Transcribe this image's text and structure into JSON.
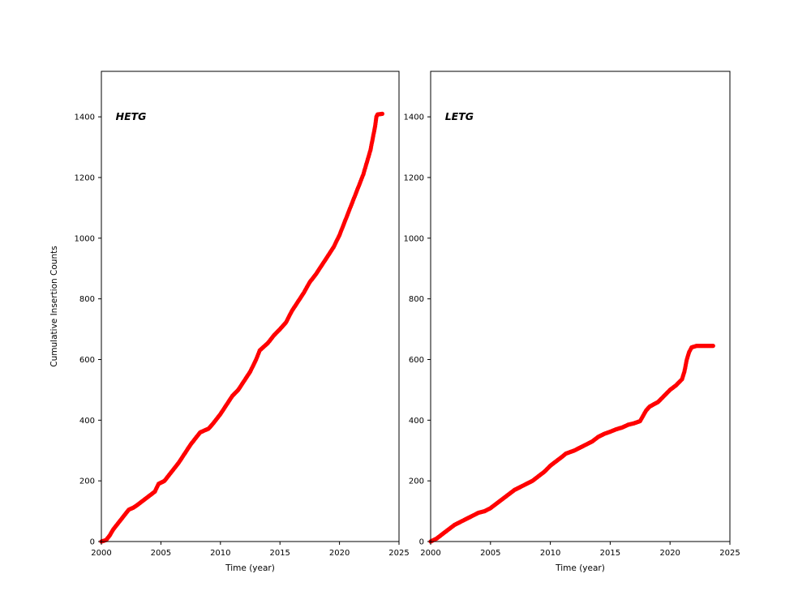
{
  "figure": {
    "background": "#ffffff",
    "marker_color": "#ff0000"
  },
  "chart_data": [
    {
      "type": "scatter",
      "title": "HETG",
      "xlabel": "Time (year)",
      "ylabel": "Cumulative Insertion Counts",
      "xlim": [
        2000,
        2025
      ],
      "ylim": [
        0,
        1550
      ],
      "xticks": [
        2000,
        2005,
        2010,
        2015,
        2020,
        2025
      ],
      "yticks": [
        0,
        200,
        400,
        600,
        800,
        1000,
        1200,
        1400
      ],
      "grid": false,
      "legend": "none",
      "annotation": {
        "text": "HETG",
        "x": 2001.2,
        "y": 1390
      },
      "points": [
        [
          2000.0,
          0
        ],
        [
          2000.4,
          5
        ],
        [
          2000.7,
          20
        ],
        [
          2001.0,
          40
        ],
        [
          2001.5,
          65
        ],
        [
          2002.0,
          90
        ],
        [
          2002.3,
          105
        ],
        [
          2002.7,
          112
        ],
        [
          2003.0,
          120
        ],
        [
          2003.5,
          135
        ],
        [
          2004.0,
          150
        ],
        [
          2004.5,
          165
        ],
        [
          2004.8,
          190
        ],
        [
          2005.3,
          200
        ],
        [
          2006.0,
          235
        ],
        [
          2006.5,
          260
        ],
        [
          2007.0,
          290
        ],
        [
          2007.5,
          320
        ],
        [
          2008.0,
          345
        ],
        [
          2008.3,
          360
        ],
        [
          2009.0,
          372
        ],
        [
          2009.3,
          385
        ],
        [
          2010.0,
          420
        ],
        [
          2010.5,
          450
        ],
        [
          2011.0,
          480
        ],
        [
          2011.5,
          500
        ],
        [
          2012.0,
          530
        ],
        [
          2012.5,
          560
        ],
        [
          2013.0,
          600
        ],
        [
          2013.3,
          630
        ],
        [
          2014.0,
          655
        ],
        [
          2014.5,
          680
        ],
        [
          2015.0,
          700
        ],
        [
          2015.5,
          722
        ],
        [
          2016.0,
          760
        ],
        [
          2016.5,
          790
        ],
        [
          2017.0,
          820
        ],
        [
          2017.5,
          855
        ],
        [
          2018.0,
          880
        ],
        [
          2018.5,
          910
        ],
        [
          2019.0,
          940
        ],
        [
          2019.5,
          970
        ],
        [
          2020.0,
          1010
        ],
        [
          2020.5,
          1060
        ],
        [
          2021.0,
          1110
        ],
        [
          2021.5,
          1160
        ],
        [
          2022.0,
          1210
        ],
        [
          2022.3,
          1250
        ],
        [
          2022.6,
          1290
        ],
        [
          2022.8,
          1330
        ],
        [
          2023.0,
          1370
        ],
        [
          2023.1,
          1400
        ],
        [
          2023.2,
          1408
        ],
        [
          2023.6,
          1410
        ]
      ]
    },
    {
      "type": "scatter",
      "title": "LETG",
      "xlabel": "Time (year)",
      "ylabel": "",
      "xlim": [
        2000,
        2025
      ],
      "ylim": [
        0,
        1550
      ],
      "xticks": [
        2000,
        2005,
        2010,
        2015,
        2020,
        2025
      ],
      "yticks": [
        0,
        200,
        400,
        600,
        800,
        1000,
        1200,
        1400
      ],
      "grid": false,
      "legend": "none",
      "annotation": {
        "text": "LETG",
        "x": 2001.2,
        "y": 1390
      },
      "points": [
        [
          2000.0,
          0
        ],
        [
          2000.5,
          10
        ],
        [
          2001.0,
          25
        ],
        [
          2001.5,
          40
        ],
        [
          2002.0,
          55
        ],
        [
          2002.5,
          65
        ],
        [
          2003.0,
          75
        ],
        [
          2003.5,
          85
        ],
        [
          2004.0,
          95
        ],
        [
          2004.5,
          100
        ],
        [
          2005.0,
          110
        ],
        [
          2005.5,
          125
        ],
        [
          2006.0,
          140
        ],
        [
          2006.5,
          155
        ],
        [
          2007.0,
          170
        ],
        [
          2007.5,
          180
        ],
        [
          2008.0,
          190
        ],
        [
          2008.5,
          200
        ],
        [
          2009.0,
          215
        ],
        [
          2009.5,
          230
        ],
        [
          2010.0,
          250
        ],
        [
          2010.5,
          265
        ],
        [
          2011.0,
          280
        ],
        [
          2011.3,
          290
        ],
        [
          2012.0,
          300
        ],
        [
          2012.5,
          310
        ],
        [
          2013.0,
          320
        ],
        [
          2013.5,
          330
        ],
        [
          2014.0,
          345
        ],
        [
          2014.5,
          355
        ],
        [
          2015.0,
          362
        ],
        [
          2015.5,
          370
        ],
        [
          2016.0,
          376
        ],
        [
          2016.5,
          385
        ],
        [
          2017.0,
          390
        ],
        [
          2017.5,
          397
        ],
        [
          2018.0,
          432
        ],
        [
          2018.3,
          445
        ],
        [
          2019.0,
          460
        ],
        [
          2019.5,
          480
        ],
        [
          2020.0,
          500
        ],
        [
          2020.5,
          515
        ],
        [
          2021.0,
          535
        ],
        [
          2021.2,
          560
        ],
        [
          2021.4,
          600
        ],
        [
          2021.6,
          625
        ],
        [
          2021.8,
          640
        ],
        [
          2022.2,
          645
        ],
        [
          2023.6,
          645
        ]
      ]
    }
  ]
}
